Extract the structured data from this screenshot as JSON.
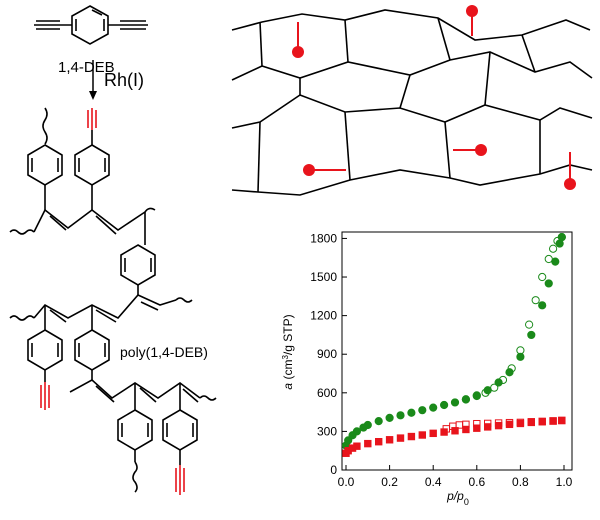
{
  "monomer_label": "1,4-DEB",
  "catalyst_label": "Rh(I)",
  "polymer_label": "poly(1,4-DEB)",
  "colors": {
    "bond": "#000000",
    "functional": "#e8141c",
    "desorption_red": "#e8141c",
    "adsorption_green": "#1a8a1a"
  },
  "chart_data": {
    "type": "scatter",
    "xlabel_main": "p/p",
    "xlabel_sub": "0",
    "ylabel_pre": "a",
    "ylabel_unit_a": "(cm",
    "ylabel_unit_sup": "3",
    "ylabel_unit_b": "/g STP)",
    "xlim": [
      0,
      1.0
    ],
    "ylim": [
      0,
      1850
    ],
    "xticks": [
      "0.0",
      "0.2",
      "0.4",
      "0.6",
      "0.8",
      "1.0"
    ],
    "xtick_values": [
      0,
      0.2,
      0.4,
      0.6,
      0.8,
      1.0
    ],
    "yticks": [
      "0",
      "300",
      "600",
      "900",
      "1200",
      "1500",
      "1800"
    ],
    "ytick_values": [
      0,
      300,
      600,
      900,
      1200,
      1500,
      1800
    ],
    "series": [
      {
        "color": "#1a8a1a",
        "marker": "circle",
        "adsorption": [
          [
            0.0,
            190
          ],
          [
            0.01,
            230
          ],
          [
            0.03,
            270
          ],
          [
            0.05,
            300
          ],
          [
            0.08,
            330
          ],
          [
            0.1,
            350
          ],
          [
            0.15,
            380
          ],
          [
            0.2,
            405
          ],
          [
            0.25,
            425
          ],
          [
            0.3,
            445
          ],
          [
            0.35,
            465
          ],
          [
            0.4,
            485
          ],
          [
            0.45,
            505
          ],
          [
            0.5,
            525
          ],
          [
            0.55,
            550
          ],
          [
            0.6,
            580
          ],
          [
            0.65,
            620
          ],
          [
            0.7,
            680
          ],
          [
            0.75,
            760
          ],
          [
            0.8,
            880
          ],
          [
            0.85,
            1050
          ],
          [
            0.9,
            1280
          ],
          [
            0.93,
            1450
          ],
          [
            0.96,
            1620
          ],
          [
            0.98,
            1760
          ],
          [
            0.99,
            1810
          ]
        ],
        "desorption": [
          [
            0.99,
            1810
          ],
          [
            0.97,
            1780
          ],
          [
            0.95,
            1720
          ],
          [
            0.93,
            1640
          ],
          [
            0.9,
            1500
          ],
          [
            0.87,
            1320
          ],
          [
            0.84,
            1130
          ],
          [
            0.8,
            930
          ],
          [
            0.76,
            790
          ],
          [
            0.72,
            700
          ],
          [
            0.68,
            640
          ],
          [
            0.64,
            600
          ],
          [
            0.6,
            575
          ],
          [
            0.55,
            548
          ]
        ]
      },
      {
        "color": "#e8141c",
        "marker": "square",
        "adsorption": [
          [
            0.0,
            130
          ],
          [
            0.01,
            150
          ],
          [
            0.03,
            170
          ],
          [
            0.05,
            185
          ],
          [
            0.1,
            205
          ],
          [
            0.15,
            220
          ],
          [
            0.2,
            235
          ],
          [
            0.25,
            248
          ],
          [
            0.3,
            260
          ],
          [
            0.35,
            272
          ],
          [
            0.4,
            285
          ],
          [
            0.45,
            295
          ],
          [
            0.5,
            305
          ],
          [
            0.55,
            315
          ],
          [
            0.6,
            325
          ],
          [
            0.65,
            335
          ],
          [
            0.7,
            345
          ],
          [
            0.75,
            355
          ],
          [
            0.8,
            362
          ],
          [
            0.85,
            370
          ],
          [
            0.9,
            375
          ],
          [
            0.95,
            380
          ],
          [
            0.99,
            385
          ]
        ],
        "desorption": [
          [
            0.99,
            385
          ],
          [
            0.95,
            382
          ],
          [
            0.9,
            378
          ],
          [
            0.85,
            375
          ],
          [
            0.8,
            370
          ],
          [
            0.75,
            368
          ],
          [
            0.7,
            365
          ],
          [
            0.65,
            362
          ],
          [
            0.6,
            360
          ],
          [
            0.55,
            355
          ],
          [
            0.52,
            350
          ],
          [
            0.49,
            340
          ],
          [
            0.46,
            320
          ]
        ]
      }
    ]
  }
}
